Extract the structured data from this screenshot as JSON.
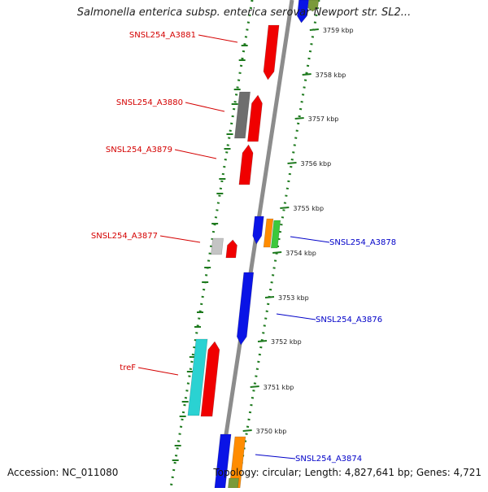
{
  "header": {
    "title": "Salmonella enterica subsp. enterica serovar Newport str. SL2..."
  },
  "footer": {
    "accession": "Accession: NC_011080",
    "summary": "Topology: circular; Length: 4,827,641 bp; Genes: 4,721"
  },
  "colors": {
    "backbone": "#8c8c8c",
    "track_dots": "#1e7a1e",
    "tick": "#1e7a1e",
    "label_left": "#d40000",
    "label_right": "#0000c8",
    "red": "#f00000",
    "blue": "#0a14e6",
    "gray": "#6e6e6e",
    "light_gray": "#c4c4c4",
    "cyan": "#2ad2d2",
    "orange": "#ff8c00",
    "green": "#3cc83c",
    "olive": "#7a9a3a"
  },
  "scale": {
    "ticks": [
      "3759 kbp",
      "3758 kbp",
      "3757 kbp",
      "3756 kbp",
      "3755 kbp",
      "3754 kbp",
      "3753 kbp",
      "3752 kbp",
      "3751 kbp",
      "3750 kbp"
    ]
  },
  "gene_labels": [
    {
      "text": "SNSL254_A3881",
      "side": "left"
    },
    {
      "text": "SNSL254_A3880",
      "side": "left"
    },
    {
      "text": "SNSL254_A3879",
      "side": "left"
    },
    {
      "text": "SNSL254_A3877",
      "side": "left"
    },
    {
      "text": "treF",
      "side": "left"
    },
    {
      "text": "SNSL254_A3878",
      "side": "right"
    },
    {
      "text": "SNSL254_A3876",
      "side": "right"
    },
    {
      "text": "SNSL254_A3874",
      "side": "right"
    }
  ]
}
